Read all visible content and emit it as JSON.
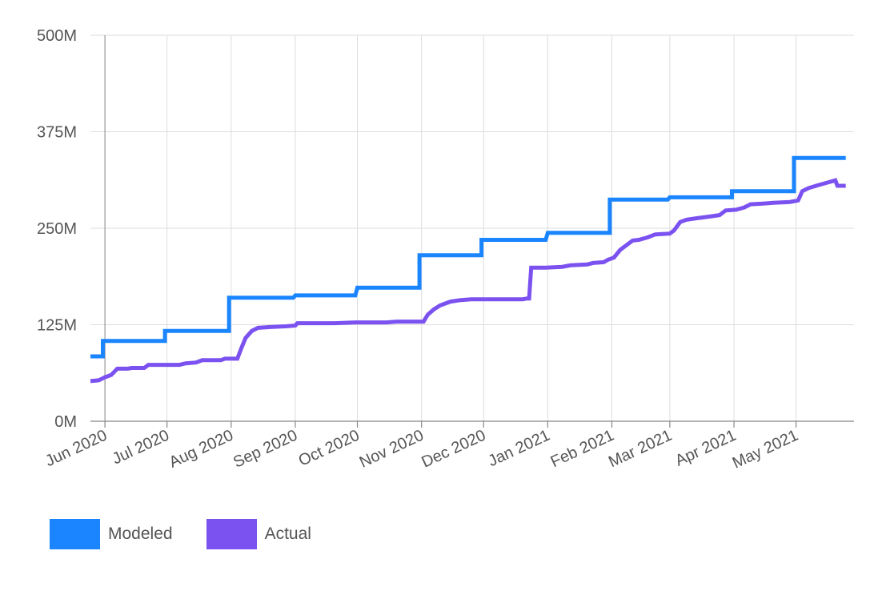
{
  "chart_data": {
    "type": "line",
    "title": "",
    "xlabel": "",
    "ylabel": "",
    "ylim": [
      0,
      500
    ],
    "y_unit": "M",
    "yticks": [
      "0M",
      "125M",
      "250M",
      "375M",
      "500M"
    ],
    "xlim": [
      "2020-05-25",
      "2021-05-29"
    ],
    "xticks": [
      "Jun 2020",
      "Jul 2020",
      "Aug 2020",
      "Sep 2020",
      "Oct 2020",
      "Nov 2020",
      "Dec 2020",
      "Jan 2021",
      "Feb 2021",
      "Mar 2021",
      "Apr 2021",
      "May 2021"
    ],
    "grid": true,
    "legend_position": "bottom-left",
    "series": [
      {
        "name": "Modeled",
        "color": "#1a85ff",
        "points": [
          [
            "2020-05-25",
            84
          ],
          [
            "2020-05-31",
            84
          ],
          [
            "2020-05-31",
            104
          ],
          [
            "2020-06-30",
            104
          ],
          [
            "2020-06-30",
            117
          ],
          [
            "2020-07-31",
            117
          ],
          [
            "2020-07-31",
            160
          ],
          [
            "2020-08-31",
            160
          ],
          [
            "2020-09-01",
            163
          ],
          [
            "2020-09-30",
            163
          ],
          [
            "2020-10-01",
            173
          ],
          [
            "2020-10-31",
            173
          ],
          [
            "2020-10-31",
            215
          ],
          [
            "2020-11-30",
            215
          ],
          [
            "2020-11-30",
            235
          ],
          [
            "2020-12-31",
            235
          ],
          [
            "2021-01-01",
            244
          ],
          [
            "2021-01-31",
            244
          ],
          [
            "2021-01-31",
            287
          ],
          [
            "2021-02-28",
            287
          ],
          [
            "2021-03-01",
            290
          ],
          [
            "2021-03-31",
            290
          ],
          [
            "2021-03-31",
            298
          ],
          [
            "2021-04-30",
            298
          ],
          [
            "2021-04-30",
            341
          ],
          [
            "2021-05-25",
            341
          ]
        ]
      },
      {
        "name": "Actual",
        "color": "#7b52f0",
        "points": [
          [
            "2020-05-25",
            52
          ],
          [
            "2020-05-29",
            53
          ],
          [
            "2020-06-01",
            57
          ],
          [
            "2020-06-04",
            60
          ],
          [
            "2020-06-07",
            68
          ],
          [
            "2020-06-12",
            68
          ],
          [
            "2020-06-14",
            69
          ],
          [
            "2020-06-20",
            69
          ],
          [
            "2020-06-22",
            73
          ],
          [
            "2020-07-07",
            73
          ],
          [
            "2020-07-10",
            75
          ],
          [
            "2020-07-15",
            76
          ],
          [
            "2020-07-18",
            79
          ],
          [
            "2020-07-27",
            79
          ],
          [
            "2020-07-29",
            81
          ],
          [
            "2020-08-04",
            81
          ],
          [
            "2020-08-06",
            95
          ],
          [
            "2020-08-08",
            108
          ],
          [
            "2020-08-11",
            117
          ],
          [
            "2020-08-14",
            121
          ],
          [
            "2020-08-20",
            122
          ],
          [
            "2020-08-28",
            123
          ],
          [
            "2020-09-01",
            124
          ],
          [
            "2020-09-02",
            127
          ],
          [
            "2020-09-20",
            127
          ],
          [
            "2020-09-30",
            128
          ],
          [
            "2020-10-15",
            128
          ],
          [
            "2020-10-20",
            129
          ],
          [
            "2020-11-02",
            129
          ],
          [
            "2020-11-04",
            138
          ],
          [
            "2020-11-07",
            145
          ],
          [
            "2020-11-10",
            150
          ],
          [
            "2020-11-15",
            155
          ],
          [
            "2020-11-20",
            157
          ],
          [
            "2020-11-25",
            158
          ],
          [
            "2020-12-20",
            158
          ],
          [
            "2020-12-22",
            159
          ],
          [
            "2020-12-23",
            159
          ],
          [
            "2020-12-24",
            199
          ],
          [
            "2020-12-31",
            199
          ],
          [
            "2021-01-08",
            200
          ],
          [
            "2021-01-12",
            202
          ],
          [
            "2021-01-20",
            203
          ],
          [
            "2021-01-23",
            205
          ],
          [
            "2021-01-28",
            206
          ],
          [
            "2021-01-30",
            209
          ],
          [
            "2021-02-02",
            212
          ],
          [
            "2021-02-05",
            222
          ],
          [
            "2021-02-08",
            228
          ],
          [
            "2021-02-11",
            234
          ],
          [
            "2021-02-14",
            235
          ],
          [
            "2021-02-18",
            238
          ],
          [
            "2021-02-22",
            242
          ],
          [
            "2021-03-01",
            243
          ],
          [
            "2021-03-03",
            247
          ],
          [
            "2021-03-06",
            258
          ],
          [
            "2021-03-09",
            261
          ],
          [
            "2021-03-14",
            263
          ],
          [
            "2021-03-20",
            265
          ],
          [
            "2021-03-25",
            267
          ],
          [
            "2021-03-28",
            273
          ],
          [
            "2021-04-02",
            274
          ],
          [
            "2021-04-06",
            277
          ],
          [
            "2021-04-09",
            281
          ],
          [
            "2021-04-15",
            282
          ],
          [
            "2021-04-20",
            283
          ],
          [
            "2021-04-28",
            284
          ],
          [
            "2021-05-02",
            286
          ],
          [
            "2021-05-04",
            298
          ],
          [
            "2021-05-07",
            302
          ],
          [
            "2021-05-12",
            306
          ],
          [
            "2021-05-16",
            309
          ],
          [
            "2021-05-20",
            312
          ],
          [
            "2021-05-21",
            305
          ],
          [
            "2021-05-25",
            305
          ]
        ]
      }
    ]
  }
}
